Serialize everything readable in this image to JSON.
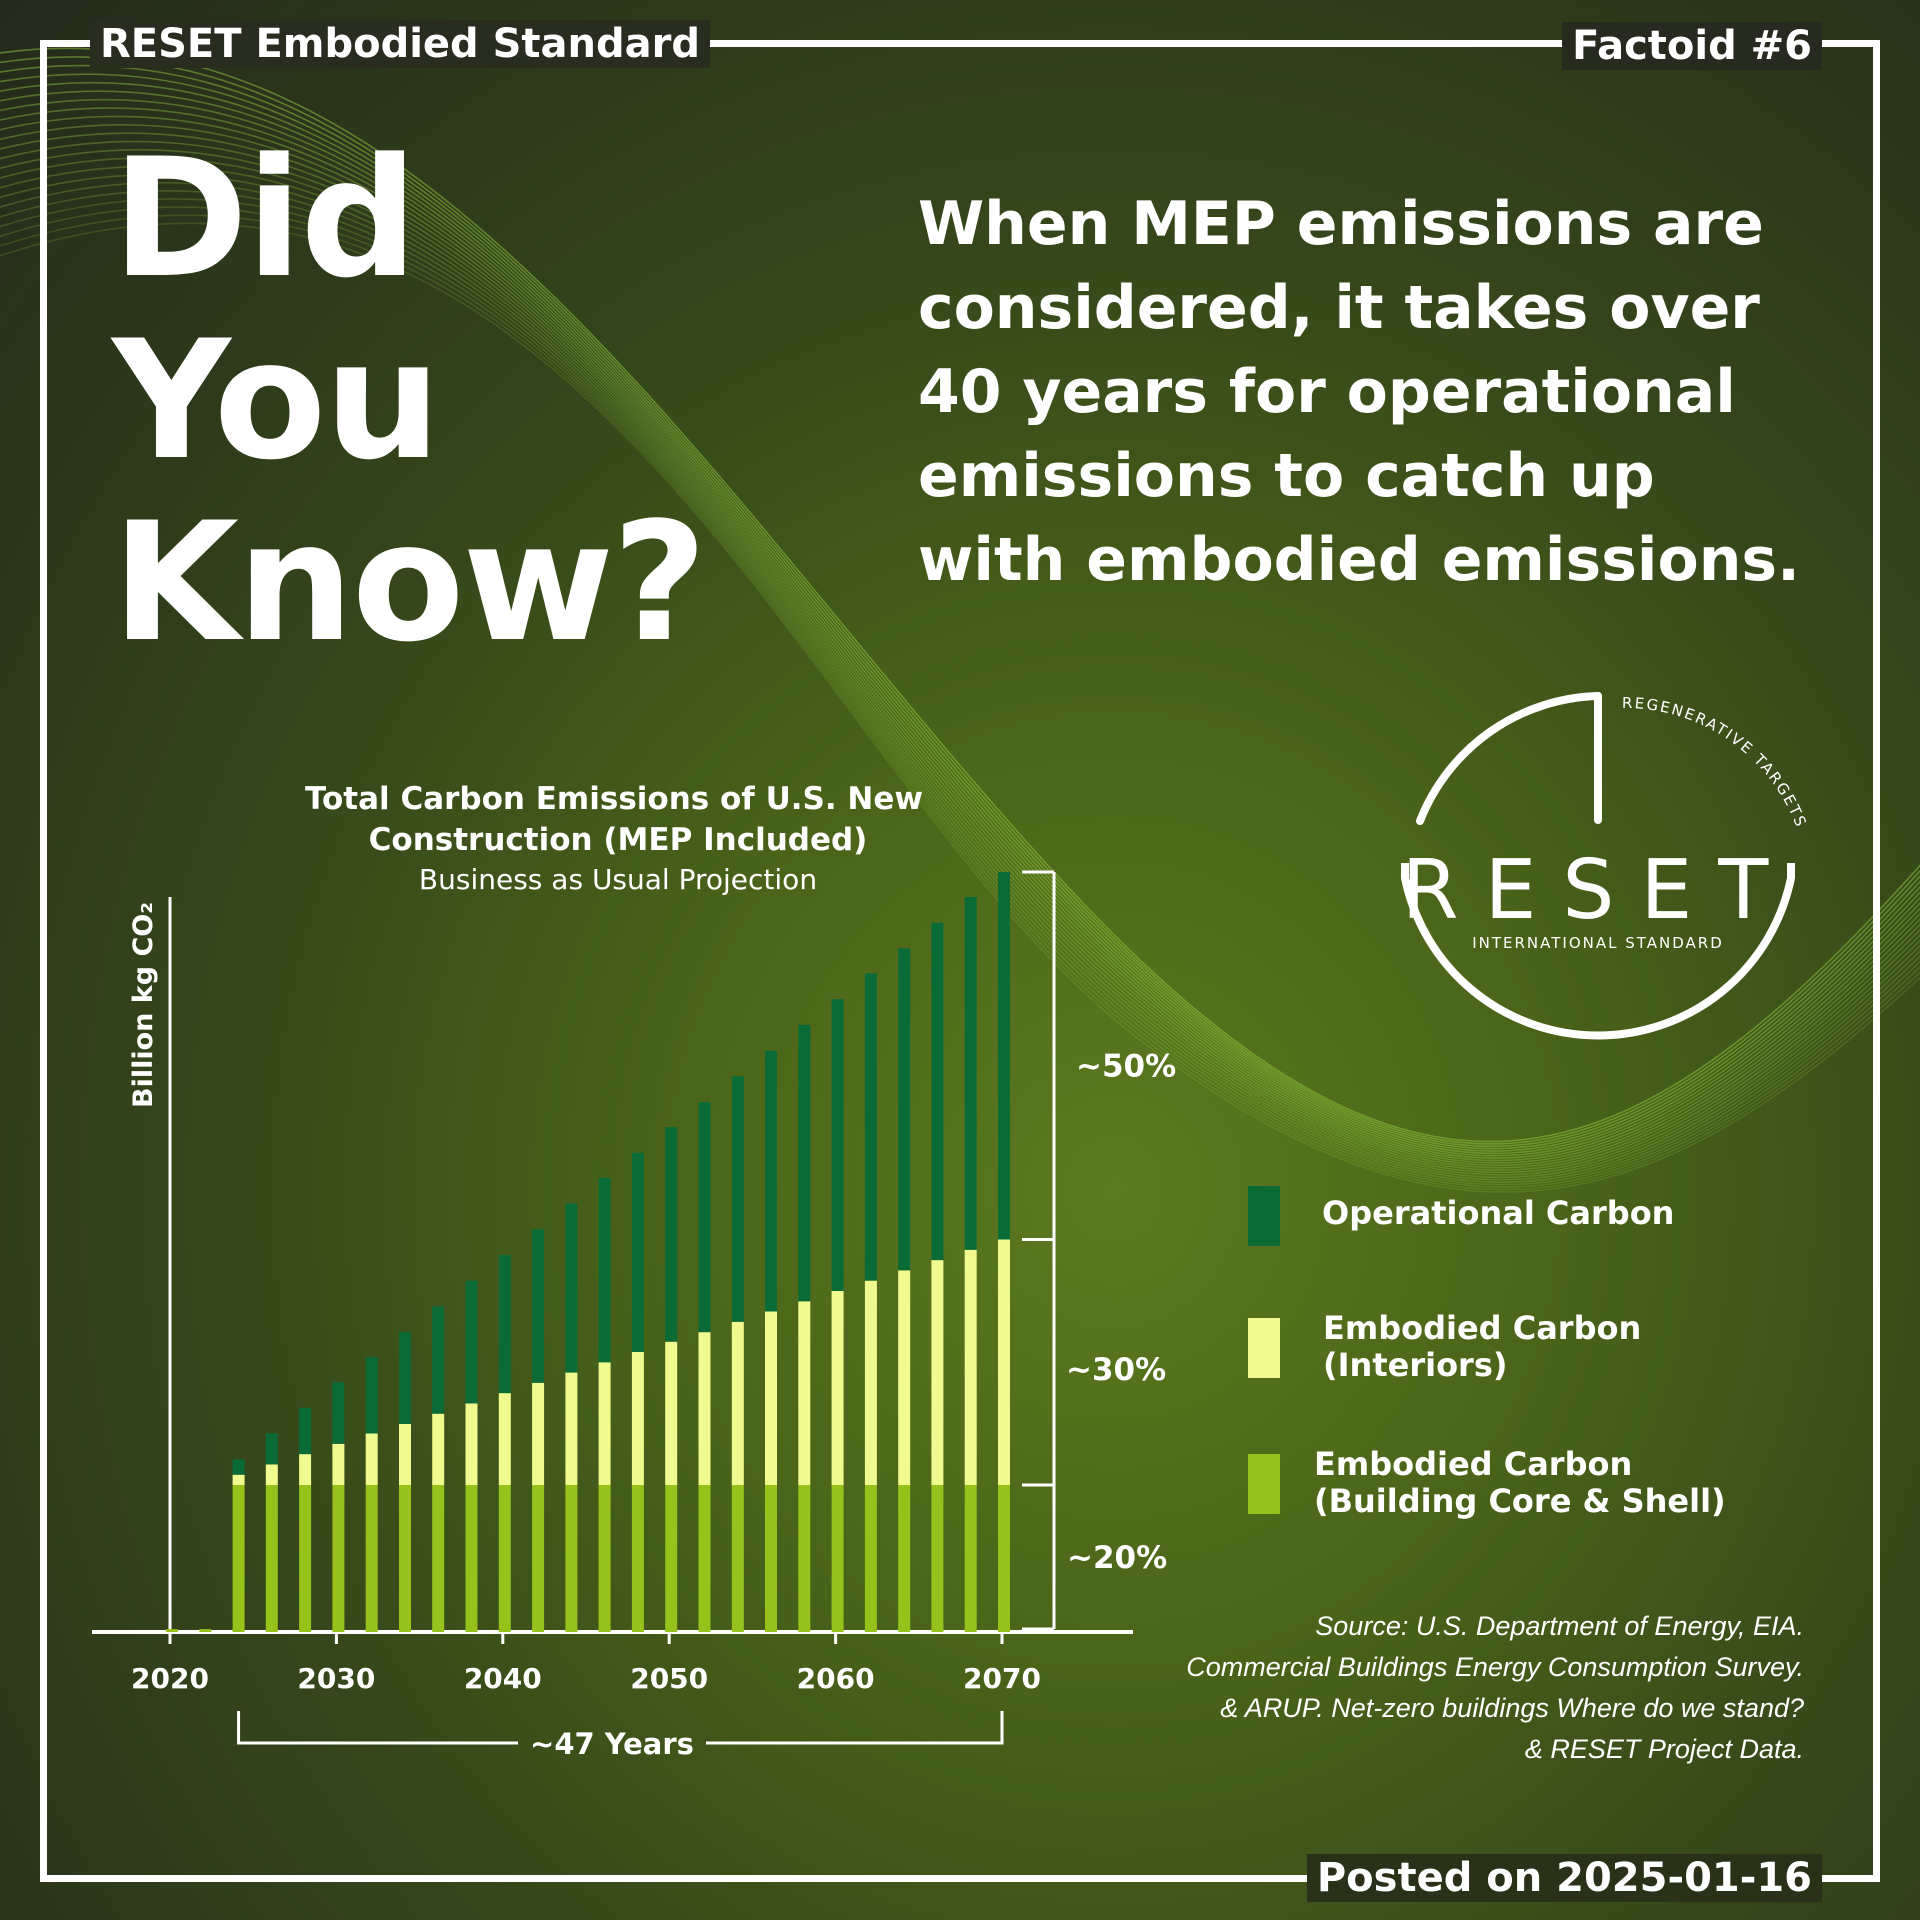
{
  "series_name_header": "RESET Embodied Standard",
  "factoid_label": "Factoid #6",
  "posted_label": "Posted on 2025-01-16",
  "headline": {
    "line1": "Did",
    "line2": "You",
    "line3": "Know?"
  },
  "fact_text": "When MEP emissions are considered, it takes over 40 years for operational emissions to catch up with embodied emissions.",
  "logo": {
    "wordmark": "RESET",
    "tagline": "INTERNATIONAL STANDARD",
    "arc_text": "REGENERATIVE TARGETS"
  },
  "legend": [
    {
      "label_line1": "Operational Carbon",
      "label_line2": "",
      "color": "#0b6b37"
    },
    {
      "label_line1": "Embodied Carbon",
      "label_line2": "(Interiors)",
      "color": "#f1fa8f"
    },
    {
      "label_line1": "Embodied Carbon",
      "label_line2": "(Building Core & Shell)",
      "color": "#97c21c"
    }
  ],
  "source_lines": [
    "Source: U.S. Department of Energy, EIA.",
    "Commercial Buildings Energy Consumption Survey.",
    "& ARUP. Net-zero buildings Where do we stand?",
    "& RESET Project Data."
  ],
  "colors": {
    "operational": "#0b6b37",
    "interiors": "#f1fa8f",
    "core_shell": "#97c21c",
    "accent_lines": "#9bd142"
  },
  "chart_data": {
    "type": "bar",
    "stacked": true,
    "title": "Total Carbon Emissions of U.S. New Construction (MEP Included)",
    "subtitle": "Business as Usual Projection",
    "ylabel": "Billion kg CO₂",
    "xlabel": "",
    "x_ticks": [
      "2020",
      "2030",
      "2040",
      "2050",
      "2060",
      "2070"
    ],
    "x_range": [
      2020,
      2070
    ],
    "y_range": [
      0,
      100
    ],
    "grid": false,
    "legend_position": "right",
    "years": [
      2020,
      2022,
      2024,
      2026,
      2028,
      2030,
      2032,
      2034,
      2036,
      2038,
      2040,
      2042,
      2044,
      2046,
      2048,
      2050,
      2052,
      2054,
      2056,
      2058,
      2060,
      2062,
      2064,
      2066,
      2068,
      2070
    ],
    "series": [
      {
        "name": "Embodied Carbon (Building Core & Shell)",
        "key": "core_shell",
        "values": [
          0.4,
          0.4,
          20,
          20,
          20,
          20,
          20,
          20,
          20,
          20,
          20,
          20,
          20,
          20,
          20,
          20,
          20,
          20,
          20,
          20,
          20,
          20,
          20,
          20,
          20,
          20
        ]
      },
      {
        "name": "Embodied Carbon (Interiors)",
        "key": "interiors",
        "values": [
          0,
          0,
          1.4,
          2.8,
          4.2,
          5.6,
          7.0,
          8.3,
          9.7,
          11.1,
          12.5,
          13.9,
          15.3,
          16.7,
          18.1,
          19.5,
          20.8,
          22.2,
          23.6,
          25.0,
          26.4,
          27.8,
          29.2,
          30.6,
          32.0,
          33.4
        ]
      },
      {
        "name": "Operational Carbon",
        "key": "operational",
        "values": [
          0,
          0,
          2.1,
          4.2,
          6.3,
          8.4,
          10.4,
          12.5,
          14.6,
          16.7,
          18.8,
          20.9,
          23.0,
          25.1,
          27.1,
          29.2,
          31.3,
          33.4,
          35.5,
          37.6,
          39.7,
          41.8,
          43.8,
          45.9,
          48.0,
          50.0
        ]
      }
    ],
    "bracket_labels": [
      "~50%",
      "~30%",
      "~20%"
    ],
    "bracket_values": [
      50,
      30,
      20
    ],
    "span_label": "~47 Years",
    "span_years": [
      2024,
      2070
    ]
  }
}
